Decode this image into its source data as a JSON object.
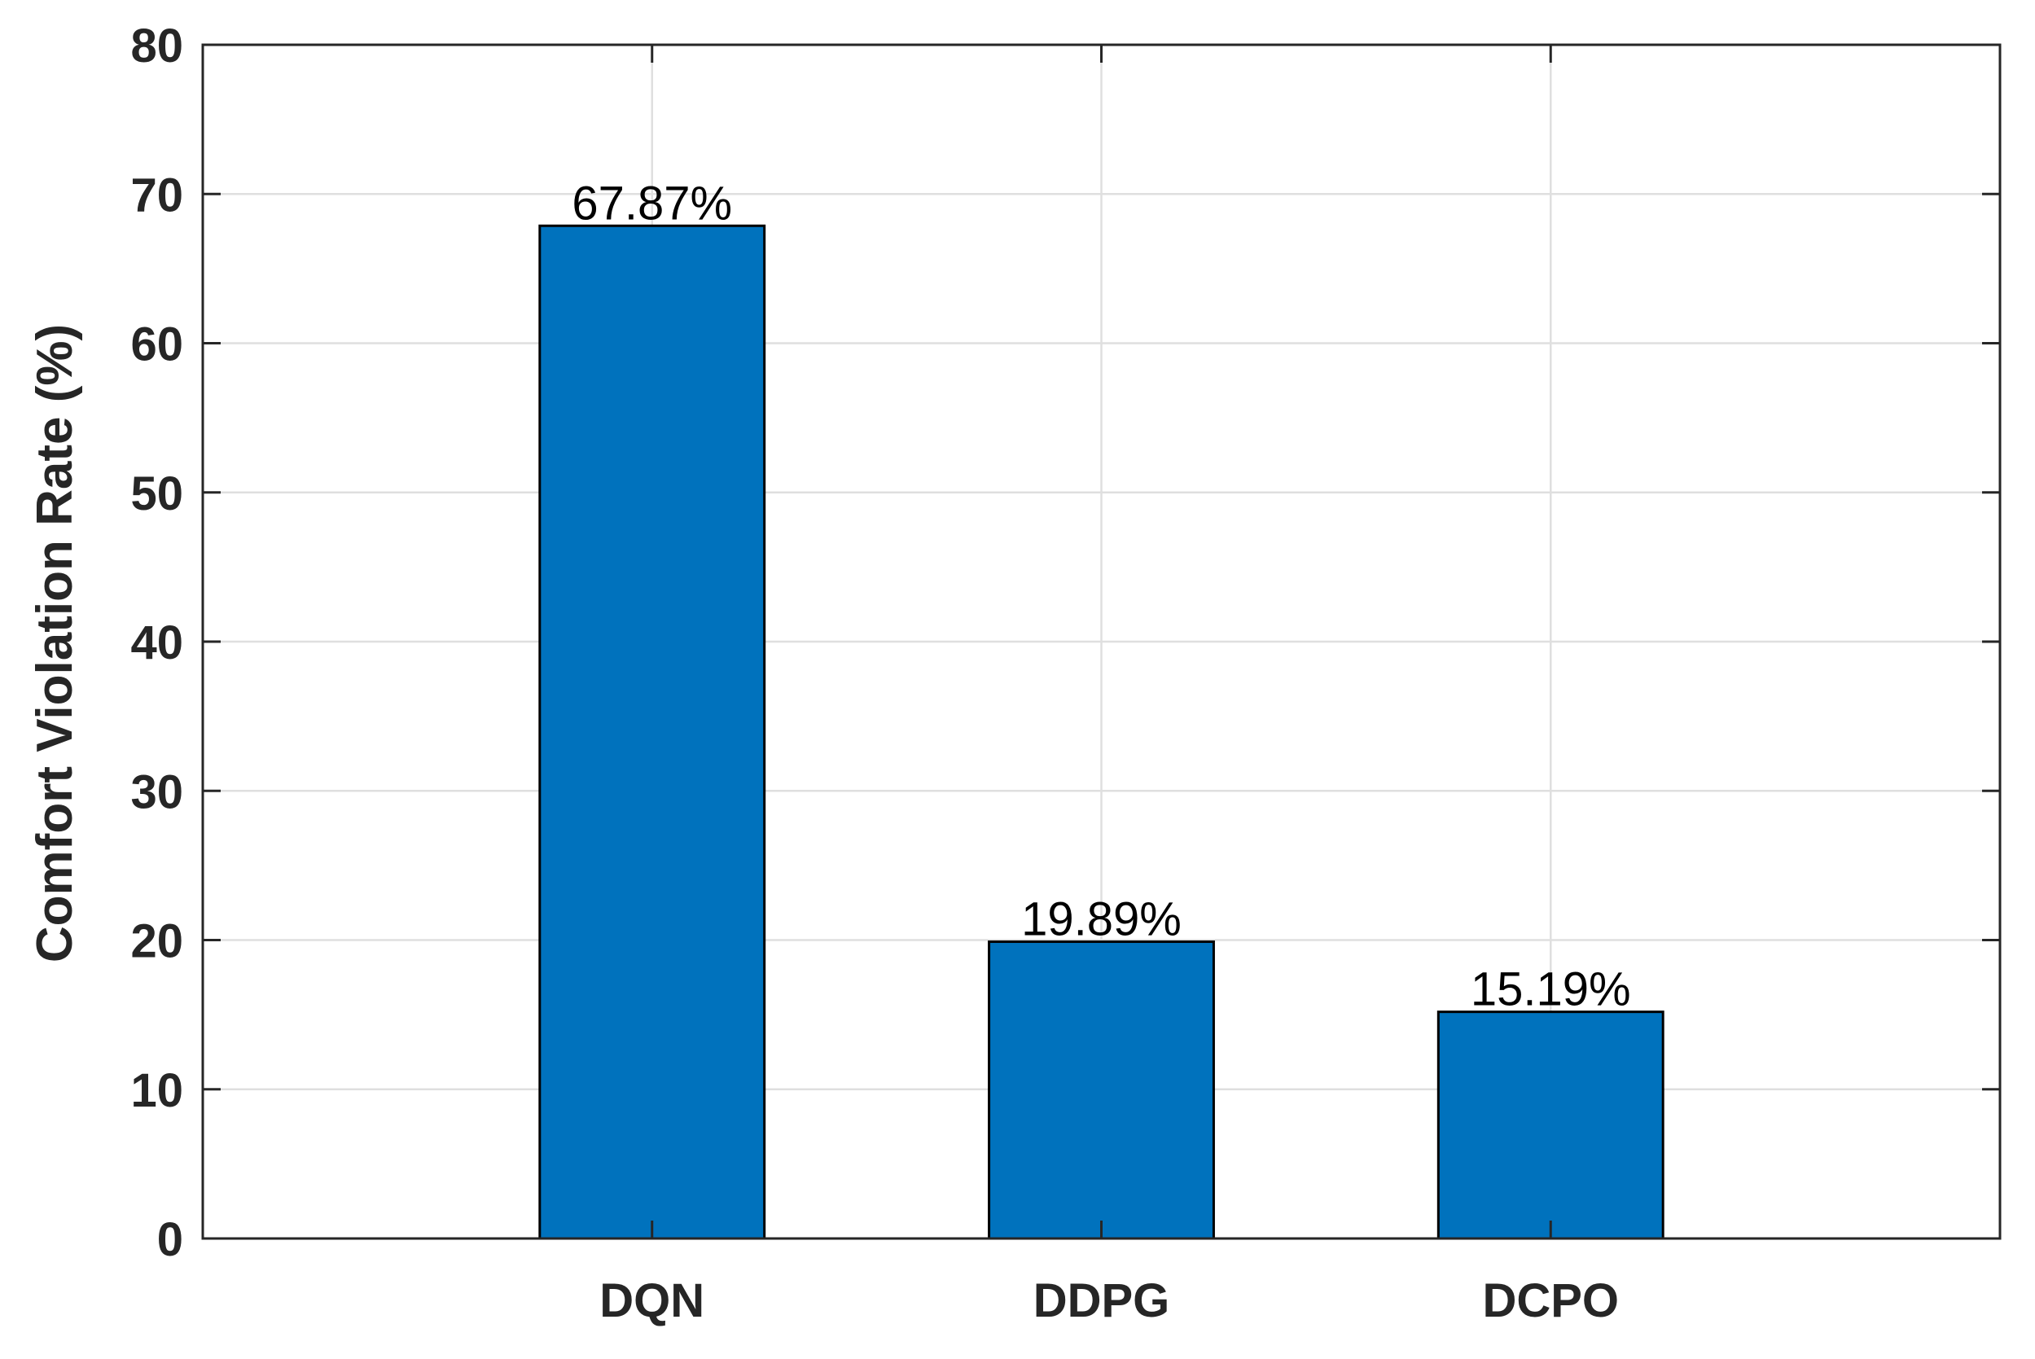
{
  "colors": {
    "bar": "#0072BD",
    "grid": "#DFDFDF",
    "axis": "#262626",
    "bar_edge": "#000000"
  },
  "chart_data": {
    "type": "bar",
    "categories": [
      "DQN",
      "DDPG",
      "DCPO"
    ],
    "values": [
      67.87,
      19.89,
      15.19
    ],
    "data_labels": [
      "67.87%",
      "19.89%",
      "15.19%"
    ],
    "ylabel": "Comfort Violation Rate (%)",
    "xlabel": "",
    "ylim": [
      0,
      80
    ],
    "yticks": [
      0,
      10,
      20,
      30,
      40,
      50,
      60,
      70,
      80
    ],
    "xlim": [
      0,
      4
    ],
    "grid": true
  }
}
